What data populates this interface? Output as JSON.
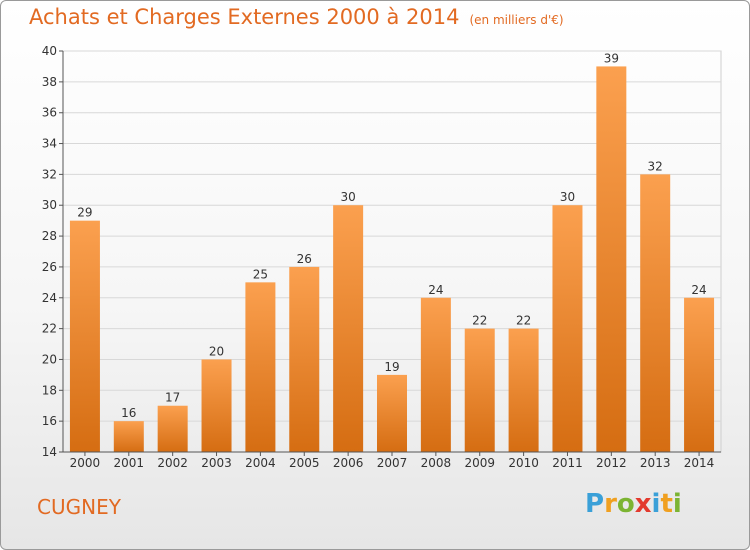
{
  "title": "Achats et Charges Externes 2000 à 2014",
  "unit": "(en milliers d'€)",
  "commune": "CUGNEY",
  "logo": "Proxiti",
  "colors": {
    "bar_light": "#fba04f",
    "bar_dark": "#d56d12",
    "title": "#e26a22"
  },
  "chart_data": {
    "type": "bar",
    "title": "Achats et Charges Externes 2000 à 2014",
    "subtitle": "(en milliers d'€)",
    "xlabel": "",
    "ylabel": "",
    "ylim": [
      14,
      40
    ],
    "yticks": [
      14,
      16,
      18,
      20,
      22,
      24,
      26,
      28,
      30,
      32,
      34,
      36,
      38,
      40
    ],
    "grid": true,
    "categories": [
      "2000",
      "2001",
      "2002",
      "2003",
      "2004",
      "2005",
      "2006",
      "2007",
      "2008",
      "2009",
      "2010",
      "2011",
      "2012",
      "2013",
      "2014"
    ],
    "values": [
      29,
      16,
      17,
      20,
      25,
      26,
      30,
      19,
      24,
      22,
      22,
      30,
      39,
      32,
      24
    ]
  }
}
